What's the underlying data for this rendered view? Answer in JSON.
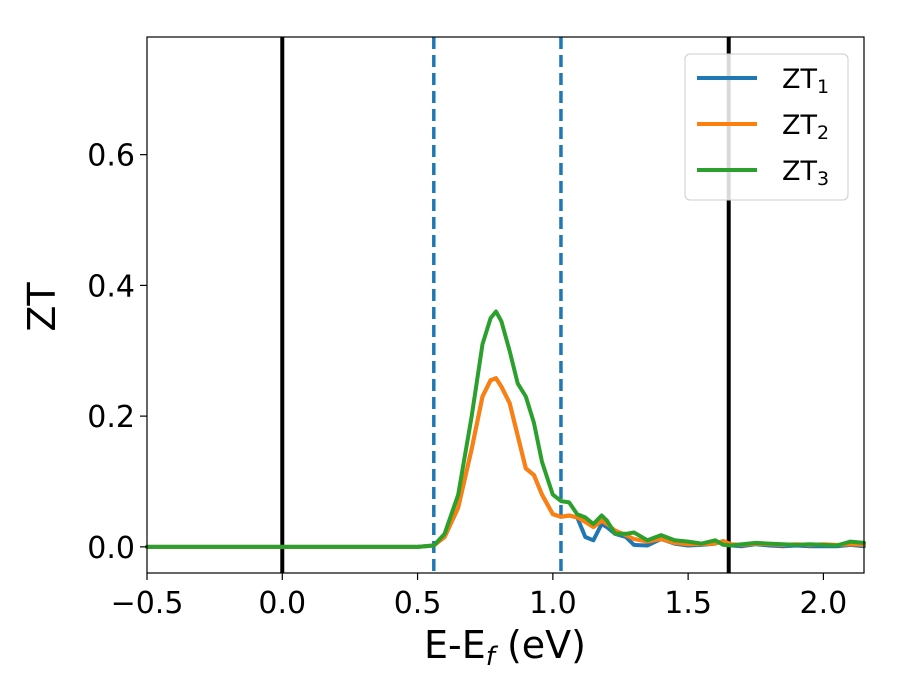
{
  "chart_data": {
    "type": "line",
    "xlabel": "E-E",
    "xlabel_sub": "f",
    "xlabel_unit": " (eV)",
    "ylabel": "ZT",
    "xlim": [
      -0.5,
      2.15
    ],
    "ylim": [
      -0.04,
      0.78
    ],
    "x_ticks": [
      -0.5,
      0.0,
      0.5,
      1.0,
      1.5,
      2.0
    ],
    "x_tick_labels": [
      "−0.5",
      "0.0",
      "0.5",
      "1.0",
      "1.5",
      "2.0"
    ],
    "y_ticks": [
      0.0,
      0.2,
      0.4,
      0.6
    ],
    "y_tick_labels": [
      "0.0",
      "0.2",
      "0.4",
      "0.6"
    ],
    "grid": false,
    "legend_position": "top-right",
    "vlines": [
      {
        "x": 0.0,
        "style": "solid",
        "color": "#000000"
      },
      {
        "x": 1.65,
        "style": "solid",
        "color": "#000000"
      },
      {
        "x": 0.56,
        "style": "dashed",
        "color": "#1f77b4"
      },
      {
        "x": 1.03,
        "style": "dashed",
        "color": "#1f77b4"
      }
    ],
    "series": [
      {
        "name": "ZT",
        "sub": "1",
        "color": "#1f77b4",
        "x": [
          -0.5,
          0.5,
          0.56,
          0.6,
          0.65,
          0.7,
          0.74,
          0.77,
          0.79,
          0.81,
          0.84,
          0.87,
          0.9,
          0.93,
          0.96,
          1.0,
          1.03,
          1.06,
          1.09,
          1.12,
          1.15,
          1.18,
          1.2,
          1.23,
          1.27,
          1.3,
          1.35,
          1.4,
          1.45,
          1.5,
          1.55,
          1.6,
          1.63,
          1.66,
          1.7,
          1.75,
          1.8,
          1.85,
          1.9,
          1.95,
          2.0,
          2.05,
          2.1,
          2.15
        ],
        "y": [
          0.0,
          0.0,
          0.002,
          0.015,
          0.06,
          0.15,
          0.23,
          0.255,
          0.258,
          0.245,
          0.22,
          0.17,
          0.12,
          0.11,
          0.08,
          0.05,
          0.046,
          0.048,
          0.045,
          0.015,
          0.01,
          0.035,
          0.03,
          0.02,
          0.015,
          0.003,
          0.002,
          0.012,
          0.005,
          0.002,
          0.003,
          0.005,
          0.009,
          0.002,
          0.001,
          0.004,
          0.002,
          0.001,
          0.002,
          0.001,
          0.001,
          0.001,
          0.003,
          0.001
        ]
      },
      {
        "name": "ZT",
        "sub": "2",
        "color": "#ff7f0e",
        "x": [
          -0.5,
          0.5,
          0.56,
          0.6,
          0.65,
          0.7,
          0.74,
          0.77,
          0.79,
          0.81,
          0.84,
          0.87,
          0.9,
          0.93,
          0.96,
          1.0,
          1.03,
          1.06,
          1.09,
          1.12,
          1.15,
          1.18,
          1.2,
          1.23,
          1.27,
          1.3,
          1.35,
          1.4,
          1.45,
          1.5,
          1.55,
          1.6,
          1.63,
          1.66,
          1.7,
          1.75,
          1.8,
          1.85,
          1.9,
          1.95,
          2.0,
          2.05,
          2.1,
          2.15
        ],
        "y": [
          0.0,
          0.0,
          0.002,
          0.015,
          0.06,
          0.15,
          0.23,
          0.255,
          0.258,
          0.245,
          0.22,
          0.17,
          0.12,
          0.11,
          0.08,
          0.05,
          0.046,
          0.048,
          0.045,
          0.038,
          0.03,
          0.04,
          0.035,
          0.025,
          0.018,
          0.012,
          0.008,
          0.012,
          0.006,
          0.004,
          0.004,
          0.005,
          0.009,
          0.004,
          0.003,
          0.005,
          0.004,
          0.003,
          0.004,
          0.003,
          0.004,
          0.003,
          0.004,
          0.003
        ]
      },
      {
        "name": "ZT",
        "sub": "3",
        "color": "#2ca02c",
        "x": [
          -0.5,
          0.5,
          0.56,
          0.6,
          0.65,
          0.7,
          0.74,
          0.77,
          0.79,
          0.81,
          0.84,
          0.87,
          0.9,
          0.93,
          0.96,
          1.0,
          1.03,
          1.06,
          1.09,
          1.12,
          1.15,
          1.18,
          1.2,
          1.23,
          1.27,
          1.3,
          1.35,
          1.4,
          1.45,
          1.5,
          1.55,
          1.6,
          1.63,
          1.66,
          1.7,
          1.75,
          1.8,
          1.85,
          1.9,
          1.95,
          2.0,
          2.05,
          2.1,
          2.15
        ],
        "y": [
          0.0,
          0.0,
          0.002,
          0.02,
          0.08,
          0.2,
          0.31,
          0.35,
          0.36,
          0.345,
          0.3,
          0.25,
          0.23,
          0.19,
          0.13,
          0.08,
          0.07,
          0.068,
          0.05,
          0.045,
          0.035,
          0.048,
          0.04,
          0.02,
          0.02,
          0.022,
          0.01,
          0.018,
          0.01,
          0.008,
          0.005,
          0.01,
          0.003,
          0.002,
          0.004,
          0.006,
          0.005,
          0.004,
          0.003,
          0.004,
          0.003,
          0.002,
          0.008,
          0.006
        ]
      }
    ]
  }
}
